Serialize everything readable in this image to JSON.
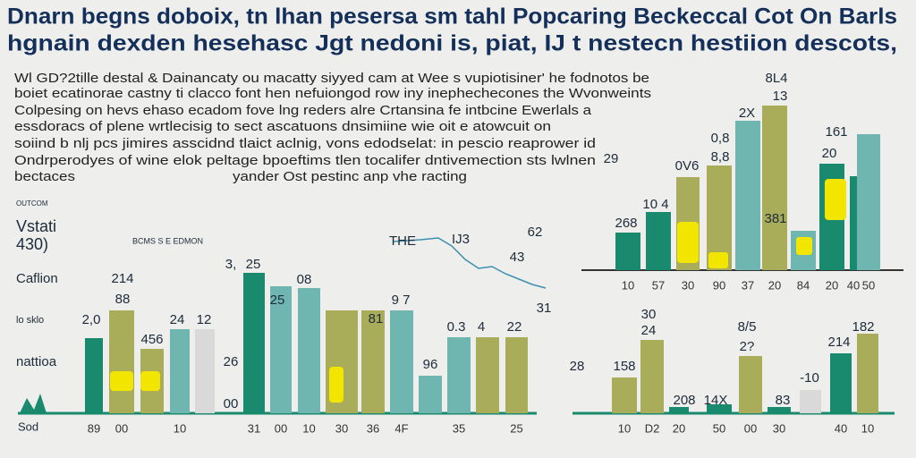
{
  "title_lines": [
    "Dnarn begns doboix, tn lhan pesersa sm tahl Popcaring Beckeccal Cot On Barls",
    "hgnain dexden hesehasc Jgt nedoni is, piat, IJ t nestecn hestiion descots,"
  ],
  "paragraph": [
    "Wl GD?2tille destal & Dainancaty ou macatty siyyed cam at Wee s vupiotisiner' he fodnotos be",
    "boiet ecatinorae castny ti clacco font hen nefuiongod row iny inephechecones the Wvonweints",
    "Colpesing on hevs ehaso ecadom fove lng reders alre Crtansina fe intbcine Ewerlals a",
    "essdoracs of plene wrtlecisig to sect ascatuons dnsimiine wie oit e atowcuit on",
    "soiind b nlj pcs jimires asscidnd tlaict aclnig, vons edodselat: in pescio reaprower id",
    "Ondrperodyes of wine elok peltage bpoeftims tlen tocalifer dntivemection sts lwlnen",
    "bectaces",
    "yander Ost pestinc anp vhe racting"
  ],
  "side_labels": [
    "OUTCOM",
    "Vstati",
    "430)",
    "BCMS S E EDMON",
    "Caflion",
    "lo sklo",
    "nattioa",
    "Sod"
  ],
  "line_notes": [
    "THE",
    "IJ3",
    "62",
    "43",
    "31"
  ],
  "chart_data": [
    {
      "type": "bar",
      "ylim": [
        0,
        190
      ],
      "categories": [
        "89",
        "00",
        null,
        "10",
        null,
        "31",
        "00",
        "10",
        "30",
        "36",
        "4F",
        null,
        "35",
        null,
        "25"
      ],
      "values": [
        84,
        115,
        72,
        94,
        94,
        157,
        142,
        140,
        115,
        115,
        115,
        42,
        85,
        85,
        85
      ],
      "colors": [
        "#1a8a6e",
        "#a9ad5a",
        "#a9ad5a",
        "#6fb5b0",
        "#d9d9d9",
        "#1a8a6e",
        "#6fb5b0",
        "#6fb5b0",
        "#a9ad5a",
        "#a9ad5a",
        "#6fb5b0",
        "#6fb5b0",
        "#6fb5b0",
        "#a9ad5a",
        "#a9ad5a"
      ],
      "annotations": [
        "2,0",
        "214",
        "88",
        "456",
        "24",
        "12",
        "25",
        "08",
        "25",
        "81",
        "9 7",
        "0.3",
        "4",
        "22",
        "96",
        "26",
        "00",
        "3,"
      ]
    },
    {
      "type": "bar",
      "ylim": [
        0,
        190
      ],
      "categories": [
        "10",
        "57",
        "30",
        "90",
        "37",
        "20",
        "84",
        "20",
        "40",
        "50"
      ],
      "values": [
        42,
        65,
        104,
        117,
        167,
        184,
        44,
        119,
        105,
        152
      ],
      "colors": [
        "#1a8a6e",
        "#1a8a6e",
        "#a9ad5a",
        "#a9ad5a",
        "#6fb5b0",
        "#a9ad5a",
        "#6fb5b0",
        "#1a8a6e",
        "#1a8a6e",
        "#6fb5b0"
      ],
      "annotations": [
        "8L4",
        "13",
        "2X",
        "161",
        "0,8",
        "8,8",
        "20",
        "0V6",
        "10 4",
        "268",
        "381",
        "29"
      ]
    },
    {
      "type": "bar",
      "ylim": [
        0,
        190
      ],
      "categories": [
        "10",
        "D2",
        "20",
        "50",
        "00",
        "30",
        null,
        "40",
        "10"
      ],
      "values": [
        40,
        82,
        7,
        10,
        64,
        7,
        26,
        67,
        89
      ],
      "colors": [
        "#a9ad5a",
        "#a9ad5a",
        "#1a8a6e",
        "#1a8a6e",
        "#a9ad5a",
        "#1a8a6e",
        "#d9d9d9",
        "#1a8a6e",
        "#a9ad5a"
      ],
      "annotations": [
        "30",
        "24",
        "28",
        "158",
        "8/5",
        "2?",
        "214",
        "182",
        "-10",
        "208",
        "14X",
        "83"
      ]
    }
  ]
}
